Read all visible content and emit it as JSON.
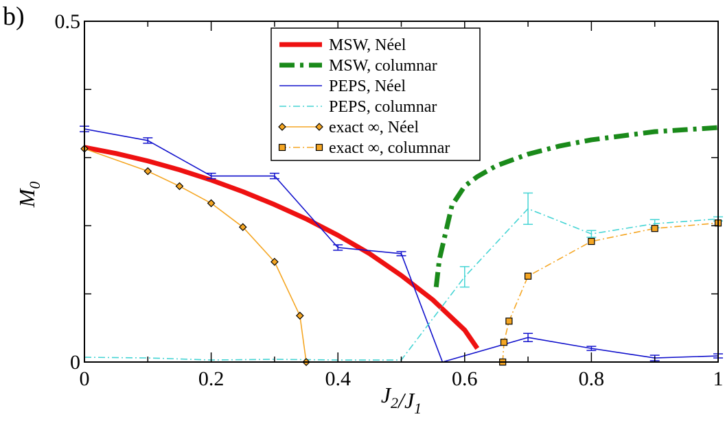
{
  "chart_data": {
    "type": "line",
    "panel_label": "b)",
    "xlabel": "J_2/J_1",
    "ylabel": "M_0",
    "xlim": [
      0,
      1
    ],
    "ylim": [
      0,
      0.5
    ],
    "xticks": [
      {
        "value": 0,
        "label": "0"
      },
      {
        "value": 0.2,
        "label": "0.2"
      },
      {
        "value": 0.4,
        "label": "0.4"
      },
      {
        "value": 0.6,
        "label": "0.6"
      },
      {
        "value": 0.8,
        "label": "0.8"
      },
      {
        "value": 1,
        "label": "1"
      }
    ],
    "yticks": [
      {
        "value": 0,
        "label": "0"
      },
      {
        "value": 0.5,
        "label": "0.5"
      }
    ],
    "legend_position": "top-center",
    "series": [
      {
        "name": "MSW, Néel",
        "color": "#ee1111",
        "style": "solid-thick",
        "x": [
          0,
          0.05,
          0.1,
          0.15,
          0.2,
          0.25,
          0.3,
          0.35,
          0.4,
          0.45,
          0.5,
          0.55,
          0.6,
          0.62
        ],
        "y": [
          0.315,
          0.306,
          0.295,
          0.282,
          0.267,
          0.25,
          0.231,
          0.21,
          0.186,
          0.159,
          0.127,
          0.091,
          0.047,
          0.02
        ]
      },
      {
        "name": "MSW, columnar",
        "color": "#1a8a1a",
        "style": "dashdot-thick",
        "x": [
          0.555,
          0.56,
          0.57,
          0.58,
          0.6,
          0.62,
          0.65,
          0.7,
          0.75,
          0.8,
          0.85,
          0.9,
          0.95,
          1.0
        ],
        "y": [
          0.11,
          0.15,
          0.19,
          0.23,
          0.258,
          0.272,
          0.288,
          0.305,
          0.317,
          0.326,
          0.332,
          0.338,
          0.341,
          0.344
        ]
      },
      {
        "name": "PEPS, Néel",
        "color": "#1111cc",
        "style": "solid",
        "errorbars": true,
        "x": [
          0,
          0.1,
          0.2,
          0.3,
          0.4,
          0.5,
          0.565,
          0.7,
          0.8,
          0.9,
          1.0
        ],
        "y": [
          0.342,
          0.325,
          0.273,
          0.273,
          0.168,
          0.159,
          0.0,
          0.036,
          0.02,
          0.006,
          0.009
        ],
        "err": [
          0.004,
          0.004,
          0.004,
          0.004,
          0.004,
          0.003,
          0.0,
          0.006,
          0.003,
          0.004,
          0.003
        ]
      },
      {
        "name": "PEPS, columnar",
        "color": "#44d4d4",
        "style": "dashdot",
        "errorbars": true,
        "x": [
          0,
          0.1,
          0.2,
          0.3,
          0.4,
          0.5,
          0.6,
          0.7,
          0.8,
          0.9,
          1.0
        ],
        "y": [
          0.007,
          0.006,
          0.003,
          0.004,
          0.003,
          0.003,
          0.125,
          0.225,
          0.188,
          0.203,
          0.21
        ],
        "err": [
          0.0,
          0.0,
          0.0,
          0.0,
          0.0,
          0.0,
          0.015,
          0.023,
          0.005,
          0.006,
          0.003
        ]
      },
      {
        "name": "exact ∞, Néel",
        "color": "#f5a623",
        "style": "solid",
        "marker": "diamond",
        "x": [
          0,
          0.1,
          0.15,
          0.2,
          0.25,
          0.3,
          0.34,
          0.35
        ],
        "y": [
          0.313,
          0.28,
          0.258,
          0.233,
          0.198,
          0.147,
          0.068,
          0.0
        ]
      },
      {
        "name": "exact ∞, columnar",
        "color": "#f5a623",
        "style": "dashdot",
        "marker": "square",
        "x": [
          0.66,
          0.662,
          0.67,
          0.7,
          0.8,
          0.9,
          1.0
        ],
        "y": [
          0.0,
          0.029,
          0.06,
          0.126,
          0.177,
          0.196,
          0.204
        ]
      }
    ]
  }
}
